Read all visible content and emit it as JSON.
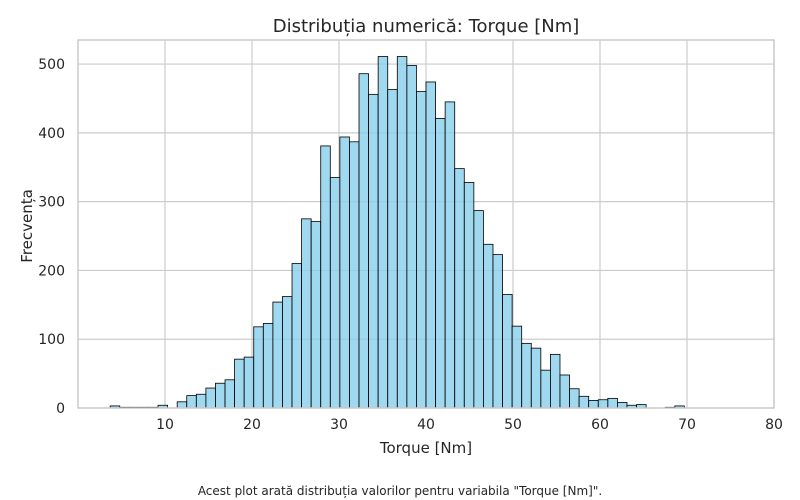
{
  "chart_data": {
    "type": "bar",
    "title": "Distribuția numerică: Torque [Nm]",
    "xlabel": "Torque [Nm]",
    "ylabel": "Frecvența",
    "xlim": [
      0,
      80
    ],
    "ylim": [
      0,
      535
    ],
    "xticks": [
      10,
      20,
      30,
      40,
      50,
      60,
      70,
      80
    ],
    "yticks": [
      0,
      100,
      200,
      300,
      400,
      500
    ],
    "grid": true,
    "bin_start": 3.7,
    "bin_width": 1.1,
    "bar_color": "#87ceeb",
    "edge_color": "#000000",
    "values": [
      3,
      1,
      1,
      1,
      1,
      4,
      0,
      9,
      18,
      20,
      29,
      36,
      41,
      71,
      74,
      118,
      123,
      154,
      162,
      210,
      275,
      271,
      381,
      335,
      394,
      387,
      486,
      456,
      511,
      463,
      511,
      498,
      460,
      474,
      421,
      445,
      348,
      328,
      287,
      238,
      223,
      165,
      119,
      94,
      87,
      55,
      78,
      48,
      28,
      17,
      11,
      12,
      14,
      8,
      4,
      5,
      0,
      0,
      1,
      3
    ]
  },
  "caption": "Acest plot arată distribuția valorilor pentru variabila \"Torque [Nm]\"."
}
